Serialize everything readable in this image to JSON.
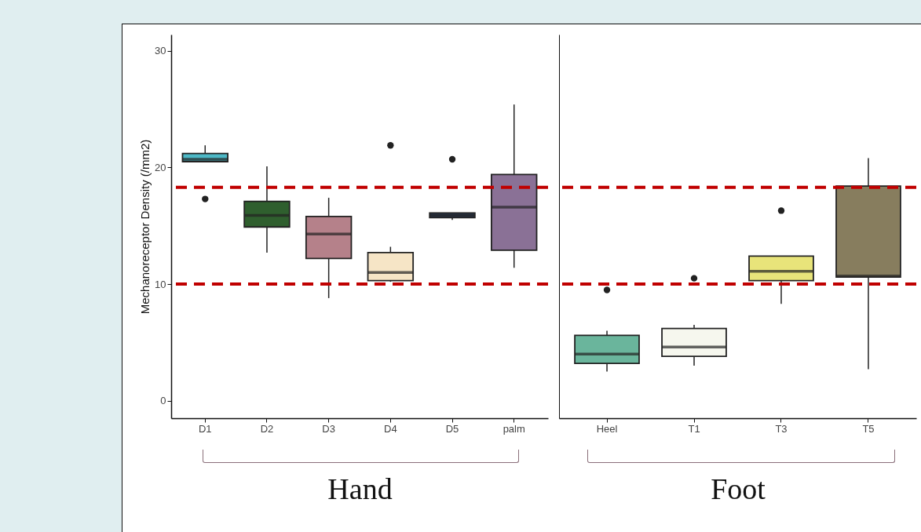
{
  "chart_data": [
    {
      "type": "box",
      "ylabel": "Mechanoreceptor Density (/mm2)",
      "xlabel": "Hand",
      "categories": [
        "D1",
        "D2",
        "D3",
        "D4",
        "D5",
        "palm"
      ],
      "colors": [
        "#4db8c6",
        "#2f5f2e",
        "#b5818a",
        "#f6e5c6",
        "#2b3b58",
        "#8a7196"
      ],
      "boxes": [
        {
          "low": 20.5,
          "q1": 20.5,
          "median": 20.7,
          "q3": 21.2,
          "high": 21.9,
          "outliers": [
            17.3
          ]
        },
        {
          "low": 12.7,
          "q1": 14.9,
          "median": 15.9,
          "q3": 17.1,
          "high": 20.1
        },
        {
          "low": 8.8,
          "q1": 12.2,
          "median": 14.3,
          "q3": 15.8,
          "high": 17.4
        },
        {
          "low": 10.2,
          "q1": 10.3,
          "median": 11.0,
          "q3": 12.7,
          "high": 13.2,
          "outliers": [
            21.9
          ]
        },
        {
          "low": 15.5,
          "q1": 15.7,
          "median": 15.9,
          "q3": 16.1,
          "high": 16.1,
          "outliers": [
            20.7
          ]
        },
        {
          "low": 11.4,
          "q1": 12.9,
          "median": 16.6,
          "q3": 19.4,
          "high": 25.4
        }
      ],
      "ylim": [
        -1.5,
        31.4
      ],
      "yticks": [
        0,
        10,
        20,
        30
      ],
      "ref_lines": [
        {
          "axis": "y",
          "value": 18.3,
          "color": "#c00000",
          "line_style": "dashed"
        },
        {
          "axis": "y",
          "value": 10.0,
          "color": "#c00000",
          "line_style": "dashed"
        }
      ]
    },
    {
      "type": "box",
      "xlabel": "Foot",
      "categories": [
        "Heel",
        "T1",
        "T3",
        "T5"
      ],
      "colors": [
        "#6ab59c",
        "#f6f7ee",
        "#e8e47a",
        "#877d5e"
      ],
      "boxes": [
        {
          "low": 2.5,
          "q1": 3.2,
          "median": 4.0,
          "q3": 5.6,
          "high": 6.0,
          "outliers": [
            9.5
          ]
        },
        {
          "low": 3.0,
          "q1": 3.8,
          "median": 4.6,
          "q3": 6.2,
          "high": 6.5,
          "outliers": [
            10.5
          ]
        },
        {
          "low": 8.3,
          "q1": 10.3,
          "median": 11.1,
          "q3": 12.4,
          "high": 12.4,
          "outliers": [
            16.3
          ]
        },
        {
          "low": 2.7,
          "q1": 10.6,
          "median": 10.7,
          "q3": 18.4,
          "high": 20.8
        }
      ],
      "ylim": [
        -1.5,
        31.4
      ],
      "yticks": [
        0,
        10,
        20,
        30
      ],
      "tick_labels": "x",
      "ref_lines": [
        {
          "axis": "y",
          "value": 18.3,
          "color": "#c00000",
          "line_style": "dashed"
        },
        {
          "axis": "y",
          "value": 10.0,
          "color": "#c00000",
          "line_style": "dashed"
        }
      ]
    }
  ]
}
